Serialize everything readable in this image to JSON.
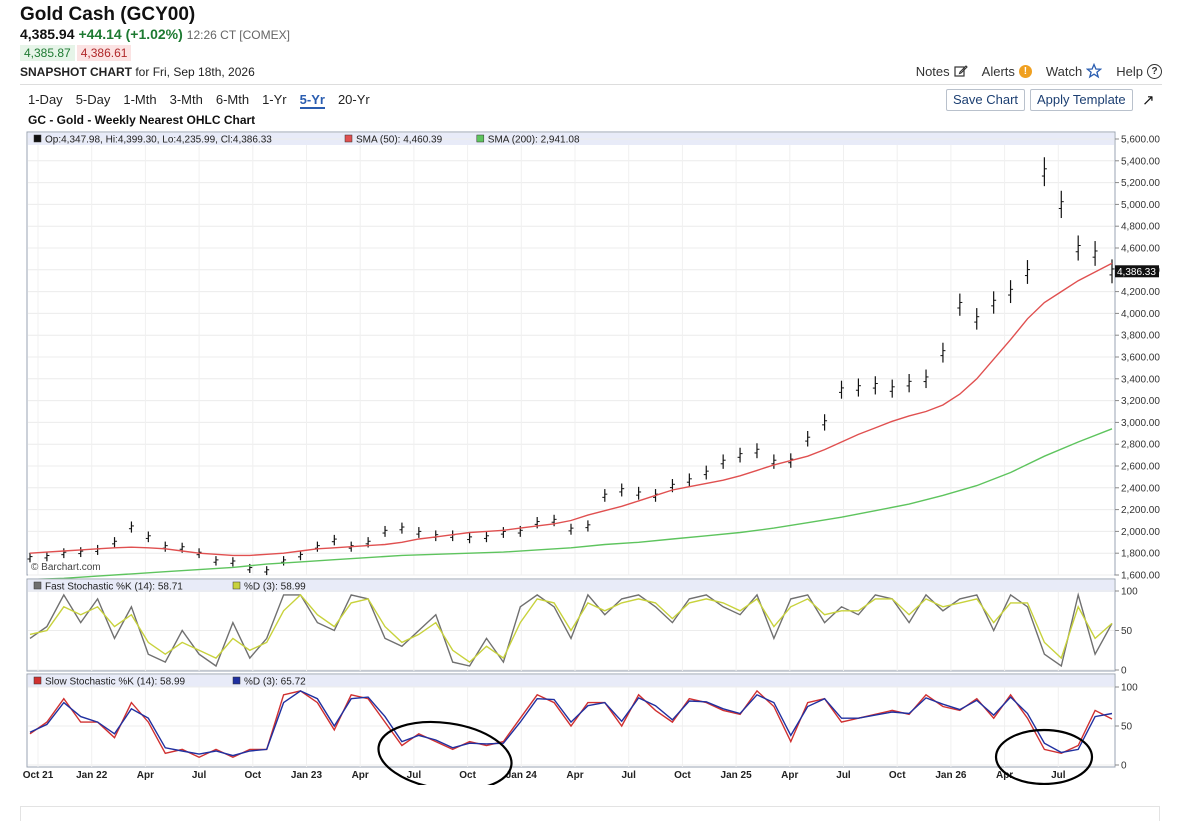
{
  "header": {
    "title": "Gold Cash (GCY00)",
    "last": "4,385.94",
    "change": "+44.14 (+1.02%)",
    "time": "12:26 CT [COMEX]",
    "bid": "4,385.87",
    "ask": "4,386.61",
    "snapshot_bold": "SNAPSHOT CHART",
    "snapshot_rest": " for Fri, Sep 18th, 2026"
  },
  "links": {
    "notes": "Notes",
    "alerts": "Alerts",
    "watch": "Watch",
    "help": "Help"
  },
  "periods": [
    "1-Day",
    "5-Day",
    "1-Mth",
    "3-Mth",
    "6-Mth",
    "1-Yr",
    "5-Yr",
    "20-Yr"
  ],
  "active_period": "5-Yr",
  "buttons": {
    "save": "Save Chart",
    "apply": "Apply Template"
  },
  "chart_title": "GC - Gold - Weekly Nearest OHLC Chart",
  "colors": {
    "up_green": "#1e7a32",
    "down_red": "#b0282a",
    "sma50": "#e05050",
    "sma200": "#5ec45e",
    "stoch_k": "#707070",
    "stoch_d": "#c8d23c",
    "slow_k": "#d03030",
    "slow_d": "#2030a0",
    "active_tab": "#2a5db0"
  },
  "chart_data": [
    {
      "type": "line",
      "title": "GC - Gold - Weekly Nearest OHLC Chart",
      "legend": [
        "Op:4,347.98, Hi:4,399.30, Lo:4,235.99, Cl:4,386.33",
        "SMA (50): 4,460.39",
        "SMA (200): 2,941.08"
      ],
      "last_price_label": "4,386.33",
      "watermark": "© Barchart.com",
      "ylim": [
        1600,
        5600
      ],
      "y_ticks": [
        "5,600.00",
        "5,400.00",
        "5,200.00",
        "5,000.00",
        "4,800.00",
        "4,600.00",
        "4,400.00",
        "4,200.00",
        "4,000.00",
        "3,800.00",
        "3,600.00",
        "3,400.00",
        "3,200.00",
        "3,000.00",
        "2,800.00",
        "2,600.00",
        "2,400.00",
        "2,200.00",
        "2,000.00",
        "1,800.00",
        "1,600.00"
      ],
      "x_ticks": [
        "Oct 21",
        "Jan 22",
        "Apr",
        "Jul",
        "Oct",
        "Jan 23",
        "Apr",
        "Jul",
        "Oct",
        "Jan 24",
        "Apr",
        "Jul",
        "Oct",
        "Jan 25",
        "Apr",
        "Jul",
        "Oct",
        "Jan 26",
        "Apr",
        "Jul"
      ],
      "series": [
        {
          "name": "Price",
          "x": [
            0,
            4,
            8,
            12,
            16,
            20,
            24,
            28,
            32,
            36,
            40,
            44,
            48,
            52,
            56,
            60,
            64,
            68,
            72,
            76,
            80,
            84,
            88,
            92,
            96,
            100,
            104,
            108,
            112,
            116,
            120,
            124,
            128,
            132,
            136,
            140,
            144,
            148,
            152,
            156,
            160,
            164,
            168,
            172,
            176,
            180,
            184,
            188,
            192,
            196,
            200,
            204,
            208,
            212,
            216,
            220,
            224,
            228,
            232,
            236,
            240,
            244,
            248,
            252,
            256
          ],
          "values": [
            1760,
            1770,
            1800,
            1810,
            1830,
            1900,
            2040,
            1950,
            1860,
            1850,
            1800,
            1730,
            1720,
            1660,
            1640,
            1730,
            1780,
            1860,
            1920,
            1860,
            1900,
            2000,
            2030,
            1990,
            1960,
            1960,
            1940,
            1950,
            1990,
            2000,
            2080,
            2100,
            2020,
            2050,
            2330,
            2380,
            2350,
            2330,
            2420,
            2470,
            2540,
            2640,
            2700,
            2740,
            2640,
            2650,
            2850,
            3000,
            3300,
            3320,
            3340,
            3310,
            3360,
            3400,
            3640,
            4080,
            3950,
            4100,
            4200,
            4380,
            5300,
            5000,
            4600,
            4550,
            4386
          ]
        },
        {
          "name": "SMA (50)",
          "x": [
            0,
            4,
            8,
            12,
            16,
            20,
            24,
            28,
            32,
            36,
            40,
            44,
            48,
            52,
            56,
            60,
            64,
            68,
            72,
            76,
            80,
            84,
            88,
            92,
            96,
            100,
            104,
            108,
            112,
            116,
            120,
            124,
            128,
            132,
            136,
            140,
            144,
            148,
            152,
            156,
            160,
            164,
            168,
            172,
            176,
            180,
            184,
            188,
            192,
            196,
            200,
            204,
            208,
            212,
            216,
            220,
            224,
            228,
            232,
            236,
            240,
            244,
            248,
            252,
            256
          ],
          "values": [
            1800,
            1810,
            1820,
            1830,
            1840,
            1850,
            1855,
            1850,
            1840,
            1820,
            1800,
            1790,
            1780,
            1780,
            1790,
            1800,
            1820,
            1840,
            1850,
            1860,
            1870,
            1880,
            1900,
            1930,
            1950,
            1970,
            1990,
            2000,
            2010,
            2030,
            2050,
            2070,
            2100,
            2150,
            2190,
            2230,
            2280,
            2330,
            2380,
            2410,
            2440,
            2470,
            2510,
            2560,
            2610,
            2650,
            2690,
            2750,
            2820,
            2890,
            2950,
            3010,
            3060,
            3100,
            3160,
            3260,
            3400,
            3580,
            3760,
            3950,
            4100,
            4200,
            4300,
            4380,
            4460
          ]
        },
        {
          "name": "SMA (200)",
          "x": [
            0,
            8,
            16,
            24,
            32,
            40,
            48,
            56,
            64,
            72,
            80,
            88,
            96,
            104,
            112,
            120,
            128,
            136,
            144,
            152,
            160,
            168,
            176,
            184,
            192,
            200,
            208,
            216,
            224,
            232,
            240,
            248,
            256
          ],
          "values": [
            1560,
            1570,
            1590,
            1610,
            1630,
            1650,
            1670,
            1700,
            1720,
            1740,
            1760,
            1780,
            1790,
            1800,
            1810,
            1830,
            1850,
            1880,
            1900,
            1930,
            1960,
            1990,
            2030,
            2080,
            2130,
            2190,
            2250,
            2330,
            2420,
            2540,
            2690,
            2820,
            2941
          ]
        }
      ]
    },
    {
      "type": "line",
      "title": "Fast Stochastic",
      "legend": [
        "Fast Stochastic %K (14): 58.71",
        "%D (3): 58.99"
      ],
      "ylim": [
        0,
        100
      ],
      "y_ticks": [
        "100",
        "50",
        "0"
      ],
      "series": [
        {
          "name": "Fast Stochastic %K (14)",
          "x": [
            0,
            4,
            8,
            12,
            16,
            20,
            24,
            28,
            32,
            36,
            40,
            44,
            48,
            52,
            56,
            60,
            64,
            68,
            72,
            76,
            80,
            84,
            88,
            92,
            96,
            100,
            104,
            108,
            112,
            116,
            120,
            124,
            128,
            132,
            136,
            140,
            144,
            148,
            152,
            156,
            160,
            164,
            168,
            172,
            176,
            180,
            184,
            188,
            192,
            196,
            200,
            204,
            208,
            212,
            216,
            220,
            224,
            228,
            232,
            236,
            240,
            244,
            248,
            252,
            256
          ],
          "values": [
            40,
            55,
            95,
            60,
            90,
            40,
            80,
            20,
            10,
            50,
            20,
            5,
            60,
            15,
            40,
            95,
            95,
            60,
            50,
            95,
            90,
            40,
            30,
            50,
            70,
            10,
            5,
            40,
            10,
            80,
            95,
            80,
            40,
            95,
            70,
            90,
            95,
            80,
            60,
            90,
            95,
            80,
            70,
            95,
            40,
            90,
            95,
            60,
            80,
            70,
            95,
            90,
            60,
            95,
            75,
            90,
            95,
            50,
            95,
            80,
            20,
            5,
            95,
            20,
            59
          ]
        },
        {
          "name": "%D (3)",
          "x": [
            0,
            4,
            8,
            12,
            16,
            20,
            24,
            28,
            32,
            36,
            40,
            44,
            48,
            52,
            56,
            60,
            64,
            68,
            72,
            76,
            80,
            84,
            88,
            92,
            96,
            100,
            104,
            108,
            112,
            116,
            120,
            124,
            128,
            132,
            136,
            140,
            144,
            148,
            152,
            156,
            160,
            164,
            168,
            172,
            176,
            180,
            184,
            188,
            192,
            196,
            200,
            204,
            208,
            212,
            216,
            220,
            224,
            228,
            232,
            236,
            240,
            244,
            248,
            252,
            256
          ],
          "values": [
            45,
            50,
            80,
            70,
            80,
            55,
            70,
            35,
            20,
            35,
            25,
            15,
            40,
            25,
            35,
            75,
            95,
            70,
            55,
            85,
            90,
            55,
            35,
            45,
            60,
            25,
            10,
            30,
            15,
            60,
            90,
            85,
            50,
            85,
            75,
            85,
            90,
            85,
            65,
            85,
            90,
            85,
            75,
            90,
            55,
            80,
            90,
            70,
            75,
            75,
            90,
            90,
            70,
            90,
            80,
            85,
            90,
            60,
            85,
            85,
            35,
            15,
            80,
            40,
            59
          ]
        }
      ]
    },
    {
      "type": "line",
      "title": "Slow Stochastic",
      "legend": [
        "Slow Stochastic %K (14): 58.99",
        "%D (3): 65.72"
      ],
      "ylim": [
        0,
        100
      ],
      "y_ticks": [
        "100",
        "50",
        "0"
      ],
      "series": [
        {
          "name": "Slow Stochastic %K (14)",
          "x": [
            0,
            4,
            8,
            12,
            16,
            20,
            24,
            28,
            32,
            36,
            40,
            44,
            48,
            52,
            56,
            60,
            64,
            68,
            72,
            76,
            80,
            84,
            88,
            92,
            96,
            100,
            104,
            108,
            112,
            116,
            120,
            124,
            128,
            132,
            136,
            140,
            144,
            148,
            152,
            156,
            160,
            164,
            168,
            172,
            176,
            180,
            184,
            188,
            192,
            196,
            200,
            204,
            208,
            212,
            216,
            220,
            224,
            228,
            232,
            236,
            240,
            244,
            248,
            252,
            256
          ],
          "values": [
            40,
            55,
            85,
            55,
            55,
            35,
            80,
            55,
            15,
            20,
            10,
            20,
            10,
            20,
            20,
            90,
            95,
            80,
            45,
            90,
            85,
            55,
            25,
            40,
            30,
            20,
            30,
            25,
            30,
            60,
            90,
            80,
            50,
            80,
            80,
            50,
            90,
            70,
            55,
            85,
            80,
            70,
            65,
            95,
            75,
            30,
            80,
            85,
            55,
            60,
            65,
            70,
            65,
            90,
            75,
            70,
            85,
            60,
            90,
            60,
            20,
            15,
            25,
            70,
            59
          ]
        },
        {
          "name": "%D (3)",
          "x": [
            0,
            4,
            8,
            12,
            16,
            20,
            24,
            28,
            32,
            36,
            40,
            44,
            48,
            52,
            56,
            60,
            64,
            68,
            72,
            76,
            80,
            84,
            88,
            92,
            96,
            100,
            104,
            108,
            112,
            116,
            120,
            124,
            128,
            132,
            136,
            140,
            144,
            148,
            152,
            156,
            160,
            164,
            168,
            172,
            176,
            180,
            184,
            188,
            192,
            196,
            200,
            204,
            208,
            212,
            216,
            220,
            224,
            228,
            232,
            236,
            240,
            244,
            248,
            252,
            256
          ],
          "values": [
            42,
            52,
            80,
            62,
            55,
            40,
            72,
            60,
            22,
            18,
            14,
            18,
            12,
            18,
            20,
            80,
            95,
            85,
            50,
            85,
            87,
            62,
            30,
            38,
            32,
            22,
            28,
            27,
            28,
            55,
            85,
            84,
            55,
            76,
            80,
            56,
            86,
            76,
            58,
            82,
            81,
            72,
            66,
            90,
            80,
            38,
            75,
            85,
            60,
            60,
            64,
            68,
            66,
            86,
            78,
            71,
            83,
            64,
            87,
            66,
            28,
            16,
            20,
            62,
            66
          ]
        }
      ]
    }
  ]
}
